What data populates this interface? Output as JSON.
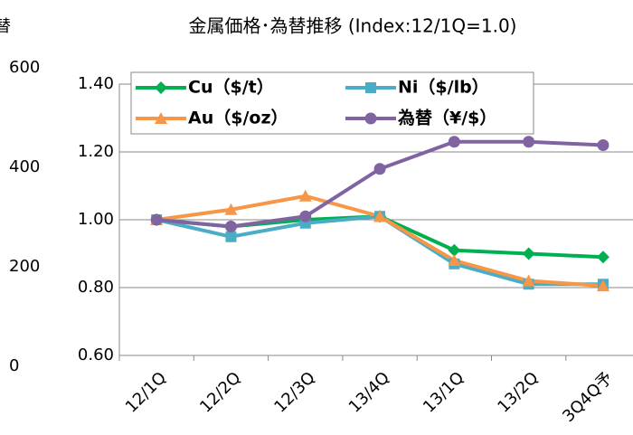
{
  "chart_data": [
    {
      "type": "fragment",
      "title": "替",
      "ylim": [
        0,
        600
      ],
      "yticks": [
        0,
        200,
        400,
        600
      ]
    },
    {
      "type": "line",
      "title": "金属価格･為替推移 (Index:12/1Q=1.0)",
      "categories": [
        "12/1Q",
        "12/2Q",
        "12/3Q",
        "13/4Q",
        "13/1Q",
        "13/2Q",
        "3Q4Q予"
      ],
      "series": [
        {
          "name": "Cu（$/t）",
          "color": "#00b050",
          "marker": "diamond",
          "values": [
            1.0,
            0.98,
            1.0,
            1.01,
            0.91,
            0.9,
            0.89
          ]
        },
        {
          "name": "Ni（$/lb）",
          "color": "#4bacc6",
          "marker": "square",
          "values": [
            1.0,
            0.95,
            0.99,
            1.01,
            0.87,
            0.81,
            0.81
          ]
        },
        {
          "name": "Au（$/oz）",
          "color": "#f79646",
          "marker": "triangle",
          "values": [
            1.0,
            1.03,
            1.07,
            1.01,
            0.88,
            0.82,
            0.805
          ]
        },
        {
          "name": "為替（¥/$）",
          "color": "#8064a2",
          "marker": "circle",
          "values": [
            1.0,
            0.98,
            1.01,
            1.15,
            1.23,
            1.23,
            1.22
          ]
        }
      ],
      "ylim": [
        0.6,
        1.4
      ],
      "yticks": [
        {
          "value": 0.6,
          "label": "0.60"
        },
        {
          "value": 0.8,
          "label": "0.80"
        },
        {
          "value": 1.0,
          "label": "1.00"
        },
        {
          "value": 1.2,
          "label": "1.20"
        },
        {
          "value": 1.4,
          "label": "1.40"
        }
      ],
      "grid": true,
      "legend": "top"
    }
  ]
}
